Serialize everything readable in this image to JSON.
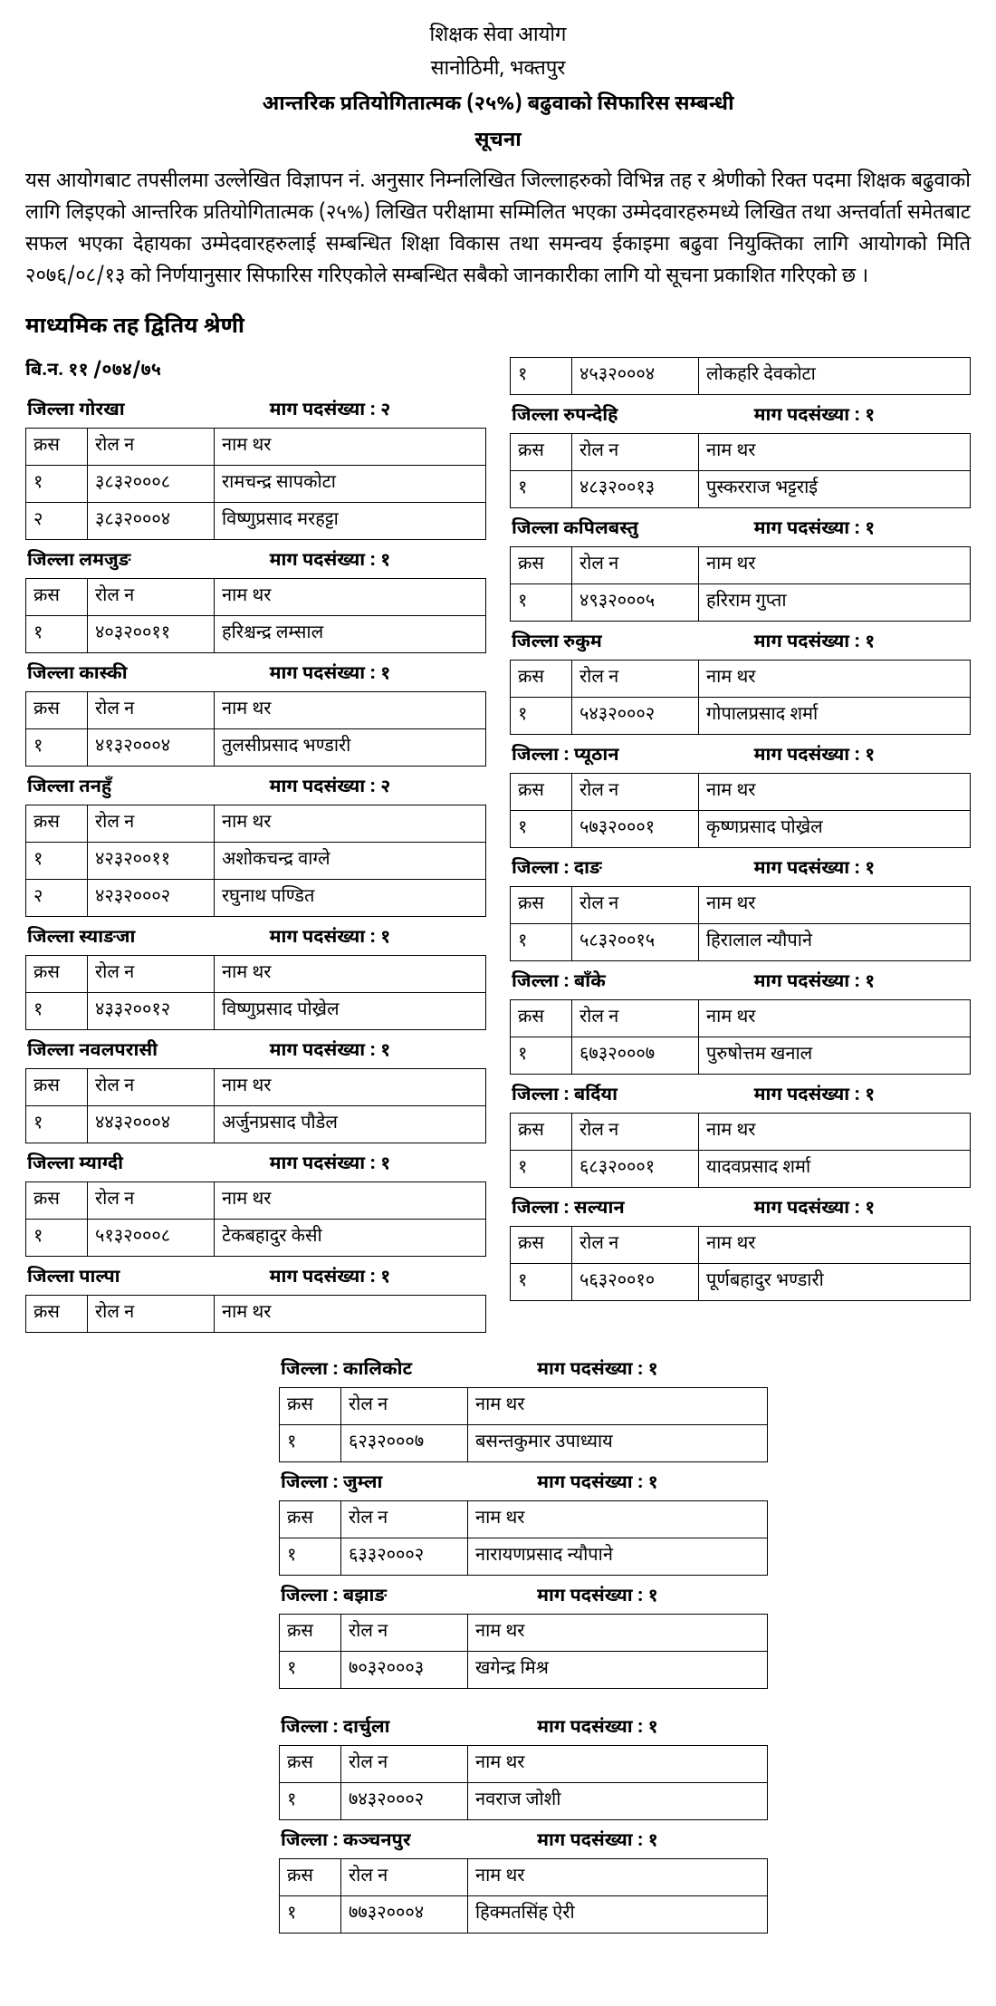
{
  "header": {
    "line1": "शिक्षक सेवा आयोग",
    "line2": "सानोठिमी, भक्तपुर",
    "title1": "आन्तरिक प्रतियोगितात्मक (२५%) बढुवाको सिफारिस सम्बन्धी",
    "title2": "सूचना"
  },
  "body_text": "यस आयोगबाट तपसीलमा उल्लेखित  विज्ञापन नं. अनुसार निम्नलिखित जिल्लाहरुको विभिन्न तह र श्रेणीको रिक्त पदमा शिक्षक बढुवाको लागि लिइएको आन्तरिक प्रतियोगितात्मक (२५%) लिखित परीक्षामा सम्मिलित भएका उम्मेदवारहरुमध्ये लिखित तथा अन्तर्वार्ता समेतबाट सफल भएका देहायका उम्मेदवारहरुलाई सम्बन्धित  शिक्षा विकास तथा समन्वय ईकाइमा बढुवा नियुक्तिका लागि आयोगको मिति २०७६/०८/१३ को निर्णयानुसार सिफारिस गरिएकोले सम्बन्धित सबैको जानकारीका लागि यो सूचना प्रकाशित गरिएको छ ।",
  "section_title": "माध्यमिक तह द्वितिय श्रेणी",
  "ad_no": "बि.न. ११ /०७४/७५",
  "labels": {
    "district": "जिल्ला",
    "demand": "माग पदसंख्या :",
    "sn": "क्रस",
    "roll": "रोल न",
    "name": "नाम थर"
  },
  "left": [
    {
      "district": "गोरखा",
      "count": "२",
      "rows": [
        {
          "sn": "१",
          "roll": "३८३२०००८",
          "name": "रामचन्द्र सापकोटा"
        },
        {
          "sn": "२",
          "roll": "३८३२०००४",
          "name": "विष्णुप्रसाद मरहट्टा"
        }
      ]
    },
    {
      "district": "लमजुङ",
      "count": "१",
      "rows": [
        {
          "sn": "१",
          "roll": "४०३२००११",
          "name": "हरिश्चन्द्र लम्साल"
        }
      ]
    },
    {
      "district": "कास्की",
      "count": "१",
      "rows": [
        {
          "sn": "१",
          "roll": "४१३२०००४",
          "name": "तुलसीप्रसाद भण्डारी"
        }
      ]
    },
    {
      "district": "तनहुँ",
      "count": "२",
      "rows": [
        {
          "sn": "१",
          "roll": "४२३२००११",
          "name": "अशोकचन्द्र वाग्ले"
        },
        {
          "sn": "२",
          "roll": "४२३२०००२",
          "name": "रघुनाथ पण्डित"
        }
      ]
    },
    {
      "district": "स्याङजा",
      "count": "१",
      "rows": [
        {
          "sn": "१",
          "roll": "४३३२००१२",
          "name": "विष्णुप्रसाद पोख्रेल"
        }
      ]
    },
    {
      "district": "नवलपरासी",
      "count": "१",
      "rows": [
        {
          "sn": "१",
          "roll": "४४३२०००४",
          "name": "अर्जुनप्रसाद पौडेल"
        }
      ]
    },
    {
      "district": "म्याग्दी",
      "count": "१",
      "rows": [
        {
          "sn": "१",
          "roll": "५१३२०००८",
          "name": "टेकबहादुर केसी"
        }
      ]
    },
    {
      "district": "पाल्पा",
      "count": "१",
      "rows": []
    }
  ],
  "right_pre_row": {
    "sn": "१",
    "roll": "४५३२०००४",
    "name": "लोकहरि देवकोटा"
  },
  "right": [
    {
      "district": "रुपन्देहि",
      "count": "१",
      "rows": [
        {
          "sn": "१",
          "roll": "४८३२००१३",
          "name": "पुस्करराज भट्टराई"
        }
      ]
    },
    {
      "district": "कपिलबस्तु",
      "count": "१",
      "rows": [
        {
          "sn": "१",
          "roll": "४९३२०००५",
          "name": "हरिराम गुप्ता"
        }
      ]
    },
    {
      "district": "रुकुम",
      "count": "१",
      "rows": [
        {
          "sn": "१",
          "roll": "५४३२०००२",
          "name": "गोपालप्रसाद शर्मा"
        }
      ]
    },
    {
      "district": ": प्यूठान",
      "count": "१",
      "rows": [
        {
          "sn": "१",
          "roll": "५७३२०००१",
          "name": "कृष्णप्रसाद पोख्रेल"
        }
      ]
    },
    {
      "district": ": दाङ",
      "count": "१",
      "rows": [
        {
          "sn": "१",
          "roll": "५८३२००१५",
          "name": "हिरालाल न्यौपाने"
        }
      ]
    },
    {
      "district": ": बाँके",
      "count": "१",
      "rows": [
        {
          "sn": "१",
          "roll": "६७३२०००७",
          "name": "पुरुषोत्तम खनाल"
        }
      ]
    },
    {
      "district": ": बर्दिया",
      "count": "१",
      "rows": [
        {
          "sn": "१",
          "roll": "६८३२०००१",
          "name": "यादवप्रसाद शर्मा"
        }
      ]
    },
    {
      "district": ": सल्यान",
      "count": "१",
      "rows": [
        {
          "sn": "१",
          "roll": "५६३२००१०",
          "name": "पूर्णबहादुर भण्डारी"
        }
      ]
    }
  ],
  "bottom": [
    {
      "district": ": कालिकोट",
      "count": "१",
      "rows": [
        {
          "sn": "१",
          "roll": "६२३२०००७",
          "name": "बसन्तकुमार उपाध्याय"
        }
      ]
    },
    {
      "district": ": जुम्ला",
      "count": "१",
      "rows": [
        {
          "sn": "१",
          "roll": "६३३२०००२",
          "name": "नारायणप्रसाद न्यौपाने"
        }
      ]
    },
    {
      "district": ": बझाङ",
      "count": "१",
      "rows": [
        {
          "sn": "१",
          "roll": "७०३२०००३",
          "name": "खगेन्द्र मिश्र"
        }
      ]
    },
    {
      "gap": true,
      "district": ": दार्चुला",
      "count": "१",
      "rows": [
        {
          "sn": "१",
          "roll": "७४३२०००२",
          "name": "नवराज जोशी"
        }
      ]
    },
    {
      "district": ": कञ्चनपुर",
      "count": "१",
      "rows": [
        {
          "sn": "१",
          "roll": "७७३२०००४",
          "name": "हिक्मतसिंह ऐरी"
        }
      ]
    }
  ]
}
